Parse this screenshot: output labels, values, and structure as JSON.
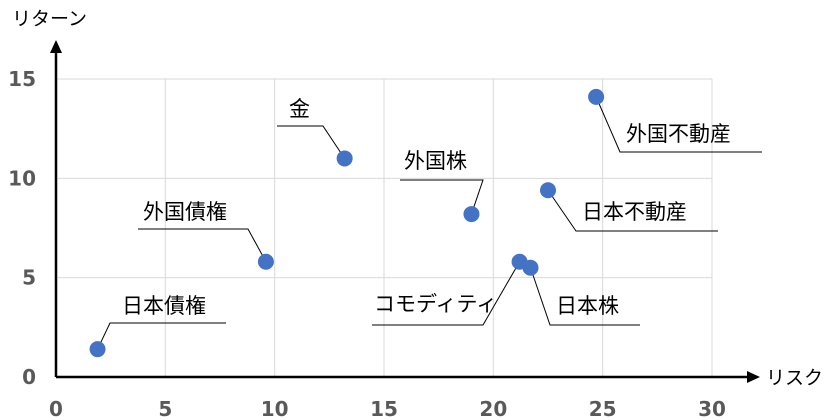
{
  "chart_data": {
    "type": "scatter",
    "xlabel": "リスク",
    "ylabel": "リターン",
    "xlim": [
      0,
      30
    ],
    "ylim": [
      0,
      15
    ],
    "xticks": [
      "0",
      "5",
      "10",
      "15",
      "20",
      "25",
      "30"
    ],
    "yticks": [
      "0",
      "5",
      "10",
      "15"
    ],
    "grid": true,
    "marker_color": "#4472c4",
    "points": [
      {
        "label": "日本債権",
        "x": 1.9,
        "y": 1.4
      },
      {
        "label": "外国債権",
        "x": 9.6,
        "y": 5.8
      },
      {
        "label": "金",
        "x": 13.2,
        "y": 11.0
      },
      {
        "label": "外国株",
        "x": 19.0,
        "y": 8.2
      },
      {
        "label": "コモディティ",
        "x": 21.2,
        "y": 5.8
      },
      {
        "label": "日本株",
        "x": 21.7,
        "y": 5.5
      },
      {
        "label": "日本不動産",
        "x": 22.5,
        "y": 9.4
      },
      {
        "label": "外国不動産",
        "x": 24.7,
        "y": 14.1
      }
    ]
  }
}
